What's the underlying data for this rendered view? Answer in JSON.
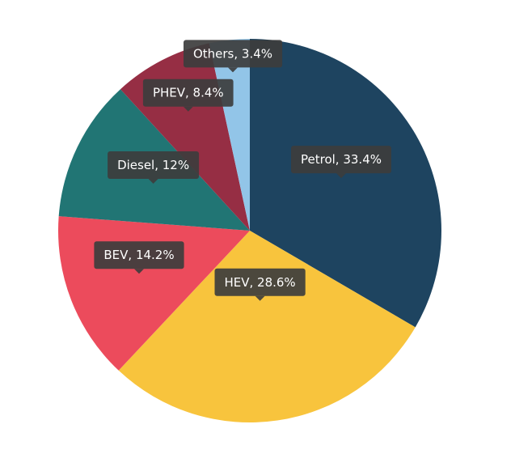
{
  "chart_data": {
    "type": "pie",
    "title": "",
    "slices": [
      {
        "label": "Petrol",
        "value": 33.4,
        "display": "Petrol, 33.4%",
        "color": "#1e4460"
      },
      {
        "label": "HEV",
        "value": 28.6,
        "display": "HEV, 28.6%",
        "color": "#f8c43d"
      },
      {
        "label": "BEV",
        "value": 14.2,
        "display": "BEV, 14.2%",
        "color": "#ec4b5c"
      },
      {
        "label": "Diesel",
        "value": 12,
        "display": "Diesel, 12%",
        "color": "#217574"
      },
      {
        "label": "PHEV",
        "value": 8.4,
        "display": "PHEV, 8.4%",
        "color": "#962e44"
      },
      {
        "label": "Others",
        "value": 3.4,
        "display": "Others, 3.4%",
        "color": "#92c5e8"
      }
    ],
    "legend": "none",
    "direction": "clockwise",
    "start_angle": "top"
  }
}
